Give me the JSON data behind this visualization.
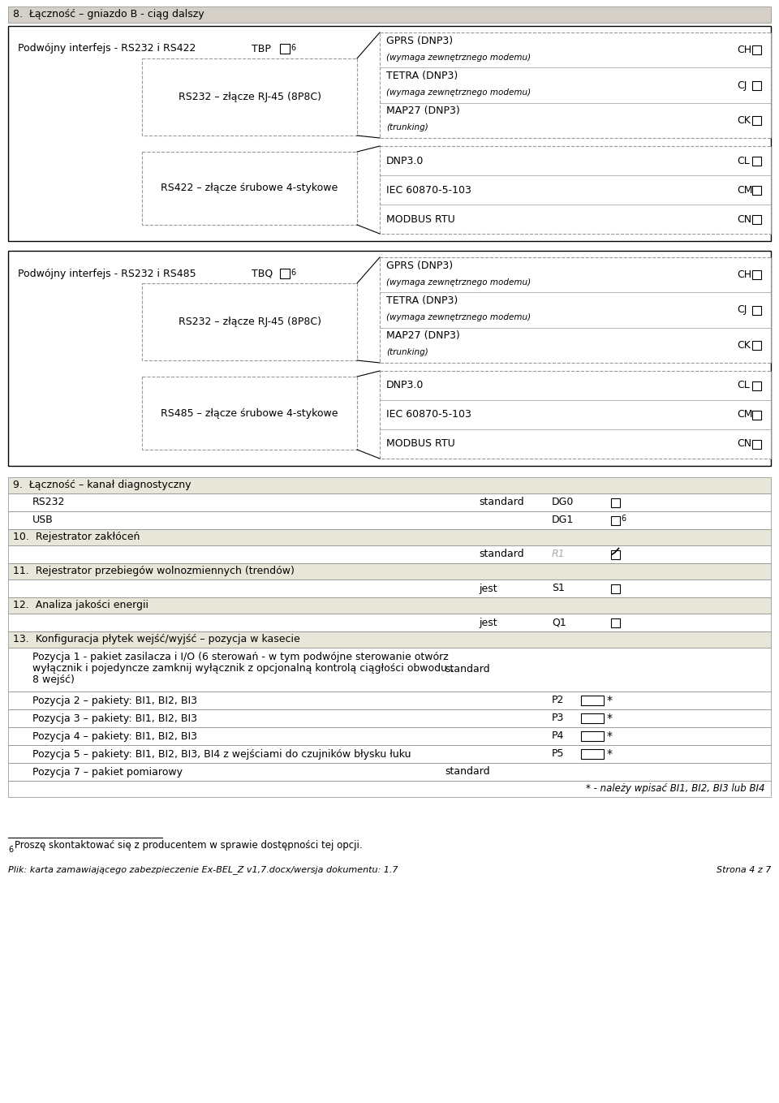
{
  "page_bg": "#ffffff",
  "header_bg": "#d4d0c8",
  "section_bg": "#e8e6d8",
  "border_color": "#000000",
  "dashed_color": "#999999",
  "section8_title": "8.  Łączność – gniazdo B - ciąg dalszy",
  "box1_label": "Podwójny interfejs - RS232 i RS422",
  "box1_tbp": "TBP",
  "box1_sub1_label": "RS232 – złącze RJ-45 (8P8C)",
  "box1_sub2_label": "RS422 – złącze śrubowe 4-stykowe",
  "box1_options_upper": [
    {
      "label": "GPRS (DNP3)",
      "sub": "(wymaga zewnętrznego modemu)",
      "code": "CH"
    },
    {
      "label": "TETRA (DNP3)",
      "sub": "(wymaga zewnętrznego modemu)",
      "code": "CJ"
    },
    {
      "label": "MAP27 (DNP3)",
      "sub": "(trunking)",
      "code": "CK"
    }
  ],
  "box1_options_lower": [
    {
      "label": "DNP3.0",
      "sub": "",
      "code": "CL"
    },
    {
      "label": "IEC 60870-5-103",
      "sub": "",
      "code": "CM"
    },
    {
      "label": "MODBUS RTU",
      "sub": "",
      "code": "CN"
    }
  ],
  "box2_label": "Podwójny interfejs - RS232 i RS485",
  "box2_tbp": "TBQ",
  "box2_sub1_label": "RS232 – złącze RJ-45 (8P8C)",
  "box2_sub2_label": "RS485 – złącze śrubowe 4-stykowe",
  "box2_options_upper": [
    {
      "label": "GPRS (DNP3)",
      "sub": "(wymaga zewnętrznego modemu)",
      "code": "CH"
    },
    {
      "label": "TETRA (DNP3)",
      "sub": "(wymaga zewnętrznego modemu)",
      "code": "CJ"
    },
    {
      "label": "MAP27 (DNP3)",
      "sub": "(trunking)",
      "code": "CK"
    }
  ],
  "box2_options_lower": [
    {
      "label": "DNP3.0",
      "sub": "",
      "code": "CL"
    },
    {
      "label": "IEC 60870-5-103",
      "sub": "",
      "code": "CM"
    },
    {
      "label": "MODBUS RTU",
      "sub": "",
      "code": "CN"
    }
  ],
  "sec9_title": "9.  Łączność – kanał diagnostyczny",
  "sec10_title": "10.  Rejestrator zakłóceń",
  "sec11_title": "11.  Rejestrator przebiegów wolnozmiennych (trendów)",
  "sec12_title": "12.  Analiza jakości energii",
  "sec13_title": "13.  Konfiguracja płytek wejść/wyjść – pozycja w kasecie",
  "sec13_pos1_line1": "Pozycja 1 - pakiet zasilacza i I/O (6 sterowań - w tym podwójne sterowanie otwórz",
  "sec13_pos1_line2": "wyłącznik i pojedyncze zamknij wyłącznik z opcjonalną kontrolą ciągłości obwodu ,",
  "sec13_pos1_line3": "8 wejść)",
  "sec13_pos1_value": "standard",
  "sec13_rows": [
    {
      "label": "Pozycja 2 – pakiety: BI1, BI2, BI3",
      "code": "P2",
      "type": "input"
    },
    {
      "label": "Pozycja 3 – pakiety: BI1, BI2, BI3",
      "code": "P3",
      "type": "input"
    },
    {
      "label": "Pozycja 4 – pakiety: BI1, BI2, BI3",
      "code": "P4",
      "type": "input"
    },
    {
      "label": "Pozycja 5 – pakiety: BI1, BI2, BI3, BI4 z wejściami do czujników błysku łuku",
      "code": "P5",
      "type": "input"
    },
    {
      "label": "Pozycja 7 – pakiet pomiarowy",
      "code": "",
      "value": "standard",
      "type": "standard"
    }
  ],
  "sec13_footnote": "* - należy wpisać BI1, BI2, BI3 lub BI4",
  "footnote6_text": "Proszę skontaktować się z producentem w sprawie dostępności tej opcji.",
  "footer_left": "Plik: karta zamawiającego zabezpieczenie Ex-BEL_Z v1,7.docx/wersja dokumentu: 1.7",
  "footer_right": "Strona 4 z 7"
}
